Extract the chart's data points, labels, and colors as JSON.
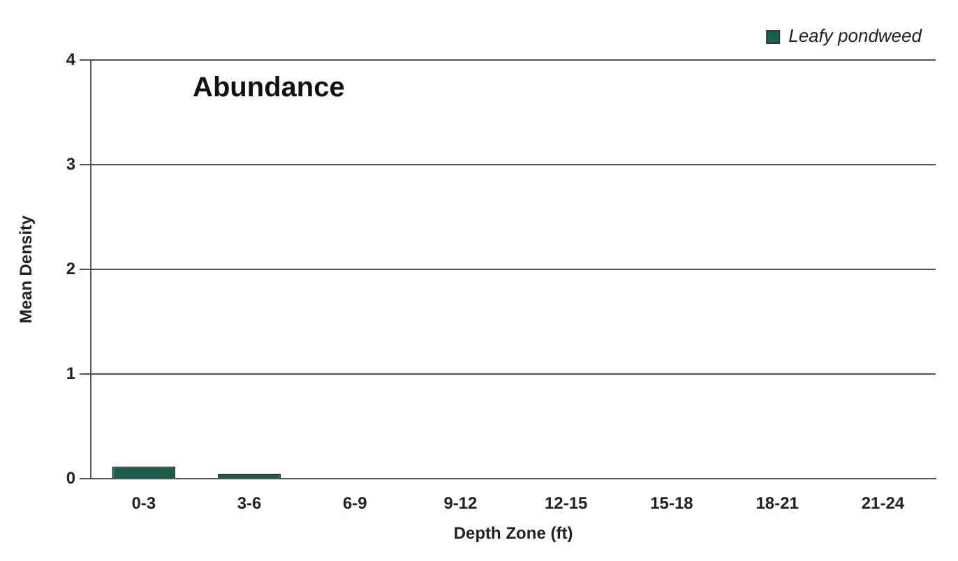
{
  "chart_data": {
    "type": "bar",
    "title": "Abundance",
    "xlabel": "Depth Zone (ft)",
    "ylabel": "Mean Density",
    "categories": [
      "0-3",
      "3-6",
      "6-9",
      "9-12",
      "12-15",
      "15-18",
      "18-21",
      "21-24"
    ],
    "series": [
      {
        "name": "Leafy pondweed",
        "color": "#1b5e4b",
        "values": [
          0.12,
          0.05,
          0,
          0,
          0,
          0,
          0,
          0
        ]
      }
    ],
    "ylim": [
      0,
      4
    ],
    "yticks": [
      0,
      1,
      2,
      3,
      4
    ],
    "grid": "y",
    "legend": "top right"
  }
}
